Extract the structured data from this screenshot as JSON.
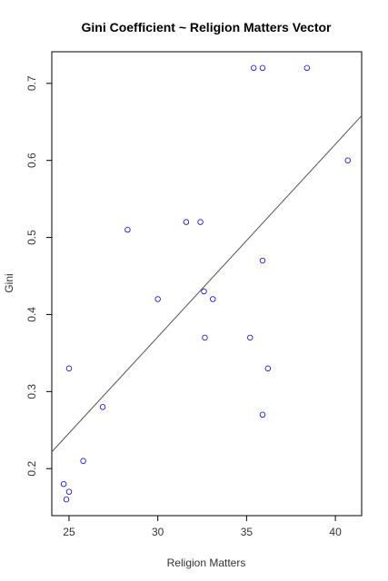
{
  "chart_data": {
    "type": "scatter",
    "title": "Gini Coefficient ~ Religion Matters Vector",
    "x_label": "Religion Matters",
    "y_label": "Gini",
    "xlim": [
      24.03,
      41.48
    ],
    "ylim": [
      0.139,
      0.741
    ],
    "xticks": [
      25,
      30,
      35,
      40
    ],
    "yticks": [
      0.2,
      0.3,
      0.4,
      0.5,
      0.6,
      0.7
    ],
    "color": "#0000ff",
    "x": [
      24.7,
      25.0,
      24.85,
      25.0,
      25.8,
      26.9,
      28.3,
      30.0,
      31.6,
      32.4,
      32.6,
      32.65,
      33.1,
      35.2,
      35.4,
      35.9,
      35.9,
      35.9,
      36.2,
      38.4,
      40.7
    ],
    "values": [
      0.18,
      0.17,
      0.16,
      0.33,
      0.21,
      0.28,
      0.51,
      0.42,
      0.52,
      0.52,
      0.43,
      0.37,
      0.42,
      0.37,
      0.72,
      0.72,
      0.47,
      0.27,
      0.33,
      0.72,
      0.6
    ],
    "fit": {
      "intercept": -0.379,
      "slope": 0.025
    }
  }
}
